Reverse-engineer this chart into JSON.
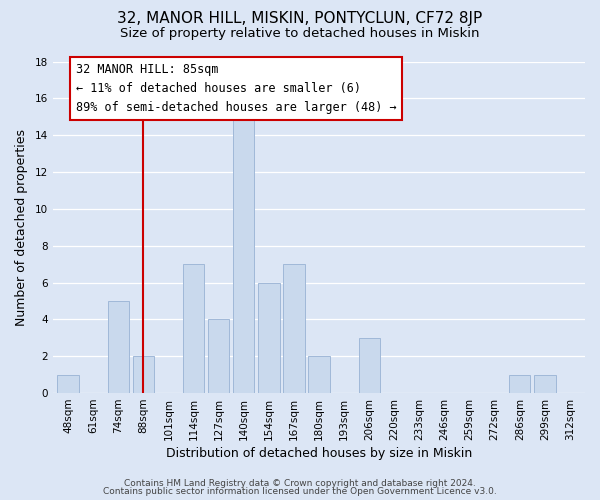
{
  "title": "32, MANOR HILL, MISKIN, PONTYCLUN, CF72 8JP",
  "subtitle": "Size of property relative to detached houses in Miskin",
  "xlabel": "Distribution of detached houses by size in Miskin",
  "ylabel": "Number of detached properties",
  "bar_labels": [
    "48sqm",
    "61sqm",
    "74sqm",
    "88sqm",
    "101sqm",
    "114sqm",
    "127sqm",
    "140sqm",
    "154sqm",
    "167sqm",
    "180sqm",
    "193sqm",
    "206sqm",
    "220sqm",
    "233sqm",
    "246sqm",
    "259sqm",
    "272sqm",
    "286sqm",
    "299sqm",
    "312sqm"
  ],
  "bar_values": [
    1,
    0,
    5,
    2,
    0,
    7,
    4,
    15,
    6,
    7,
    2,
    0,
    3,
    0,
    0,
    0,
    0,
    0,
    1,
    1,
    0
  ],
  "bar_color": "#c9d9ed",
  "bar_edge_color": "#a0b8d8",
  "highlight_bar_index": 3,
  "highlight_line_color": "#cc0000",
  "annotation_text": "32 MANOR HILL: 85sqm\n← 11% of detached houses are smaller (6)\n89% of semi-detached houses are larger (48) →",
  "annotation_box_color": "#ffffff",
  "annotation_box_edge": "#cc0000",
  "ylim": [
    0,
    18
  ],
  "yticks": [
    0,
    2,
    4,
    6,
    8,
    10,
    12,
    14,
    16,
    18
  ],
  "grid_color": "#ffffff",
  "bg_color": "#dce6f5",
  "footer_line1": "Contains HM Land Registry data © Crown copyright and database right 2024.",
  "footer_line2": "Contains public sector information licensed under the Open Government Licence v3.0.",
  "title_fontsize": 11,
  "subtitle_fontsize": 9.5,
  "axis_label_fontsize": 9,
  "tick_fontsize": 7.5,
  "annotation_fontsize": 8.5,
  "footer_fontsize": 6.5
}
